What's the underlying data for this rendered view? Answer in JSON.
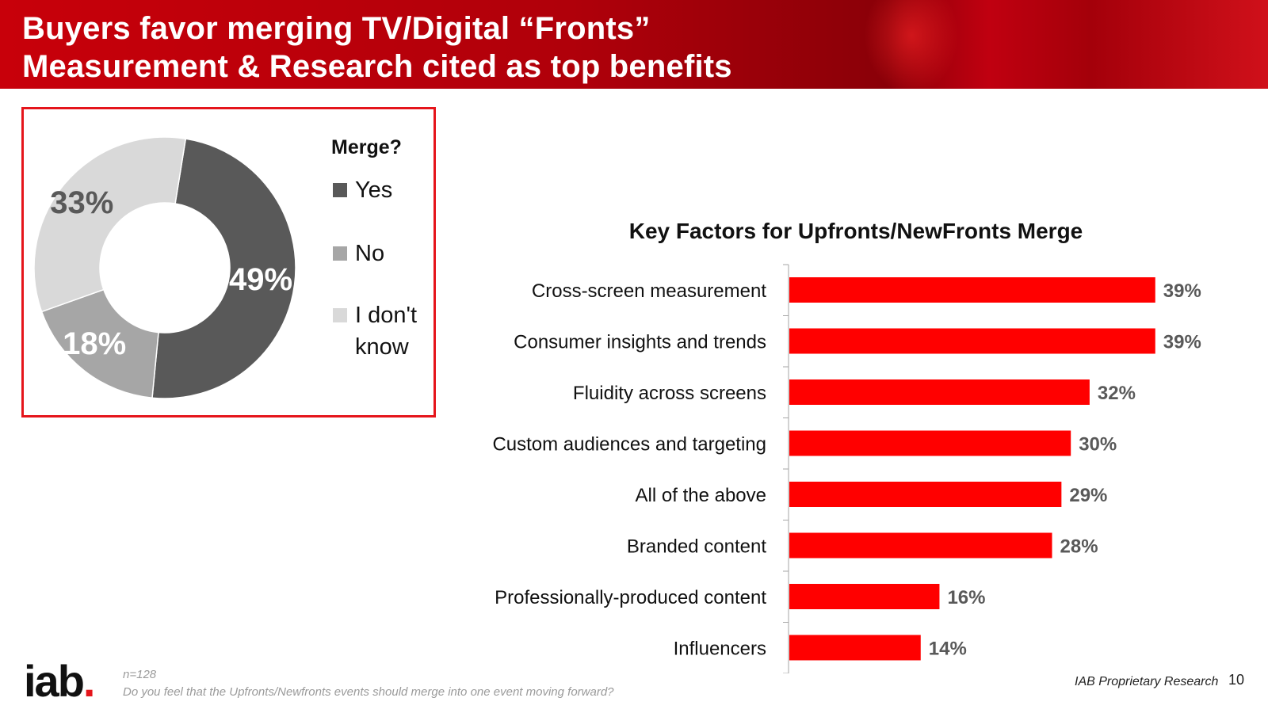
{
  "header": {
    "title_line1": "Buyers favor merging TV/Digital “Fronts”",
    "title_line2": "Measurement & Research cited as top benefits"
  },
  "chart_data": [
    {
      "type": "pie",
      "variant": "donut",
      "legend_title": "Merge?",
      "categories": [
        "Yes",
        "No",
        "I don't know"
      ],
      "values": [
        49,
        18,
        33
      ],
      "value_labels": [
        "49%",
        "18%",
        "33%"
      ],
      "colors": [
        "#595959",
        "#a6a6a6",
        "#d9d9d9"
      ],
      "label_colors": [
        "#ffffff",
        "#ffffff",
        "#595959"
      ],
      "legend_placement": "right"
    },
    {
      "type": "bar",
      "orientation": "horizontal",
      "title": "Key Factors for Upfronts/NewFronts Merge",
      "categories": [
        "Cross-screen measurement",
        "Consumer insights and trends",
        "Fluidity across screens",
        "Custom audiences and targeting",
        "All of the above",
        "Branded content",
        "Professionally-produced content",
        "Influencers"
      ],
      "values": [
        39,
        39,
        32,
        30,
        29,
        28,
        16,
        14
      ],
      "value_labels": [
        "39%",
        "39%",
        "32%",
        "30%",
        "29%",
        "28%",
        "16%",
        "14%"
      ],
      "unit": "%",
      "xlim": [
        0,
        50
      ],
      "bar_color": "#ff0000",
      "label_color": "#595959"
    }
  ],
  "footer": {
    "logo_text": "iab",
    "logo_dot": ".",
    "sample_note": "n=128",
    "question": "Do you feel that the Upfronts/Newfronts events should merge into one event moving forward?",
    "source": "IAB Proprietary Research",
    "page_number": "10"
  }
}
